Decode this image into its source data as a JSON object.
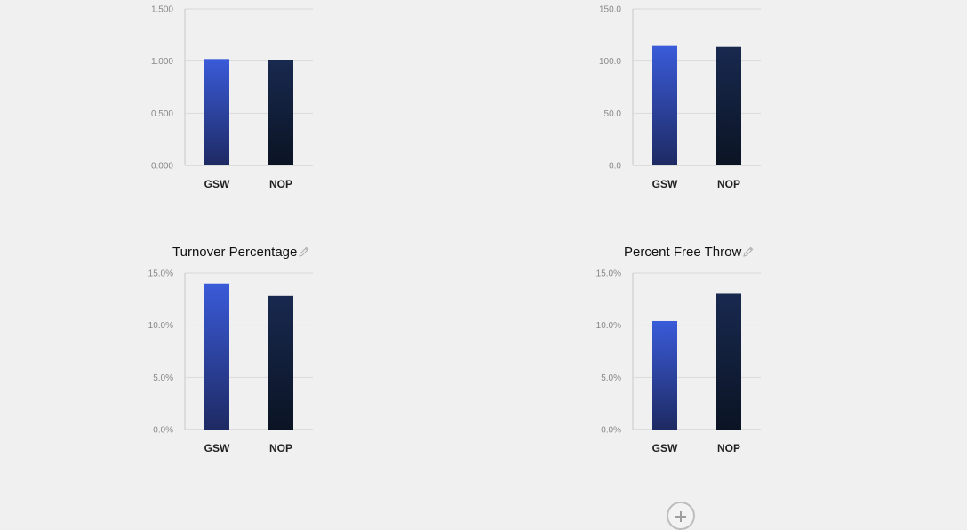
{
  "colors": {
    "gsw_top": "#3a5bd9",
    "gsw_bottom": "#1e2a63",
    "nop_top": "#18294f",
    "nop_bottom": "#0b1424",
    "grid": "#d9d9d9",
    "axis": "#c8c8c8"
  },
  "icons": {
    "edit": "pencil-icon",
    "add": "plus-icon"
  },
  "chart_data": [
    {
      "type": "bar",
      "title": "",
      "categories": [
        "GSW",
        "NOP"
      ],
      "values": [
        1.02,
        1.01
      ],
      "ylim": [
        0,
        1.5
      ],
      "yticks": [
        "0.000",
        "0.500",
        "1.000",
        "1.500"
      ],
      "grid": true
    },
    {
      "type": "bar",
      "title": "",
      "categories": [
        "GSW",
        "NOP"
      ],
      "values": [
        114.5,
        113.6
      ],
      "ylim": [
        0,
        150
      ],
      "yticks": [
        "0.0",
        "50.0",
        "100.0",
        "150.0"
      ],
      "grid": true
    },
    {
      "type": "bar",
      "title": "Turnover Percentage",
      "categories": [
        "GSW",
        "NOP"
      ],
      "values": [
        14.0,
        12.8
      ],
      "ylim": [
        0,
        15
      ],
      "yticks": [
        "0.0%",
        "5.0%",
        "10.0%",
        "15.0%"
      ],
      "grid": true
    },
    {
      "type": "bar",
      "title": "Percent Free Throw",
      "categories": [
        "GSW",
        "NOP"
      ],
      "values": [
        10.4,
        13.0
      ],
      "ylim": [
        0,
        15
      ],
      "yticks": [
        "0.0%",
        "5.0%",
        "10.0%",
        "15.0%"
      ],
      "grid": true
    }
  ]
}
